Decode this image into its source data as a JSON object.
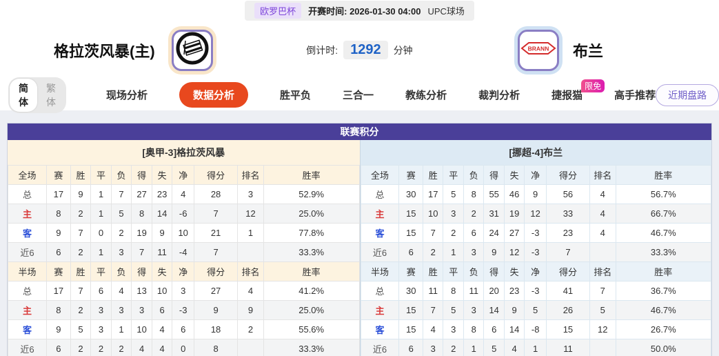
{
  "top_bar": {
    "league_badge": "欧罗巴杯",
    "kickoff_label": "开赛时间:",
    "kickoff_time": "2026-01-30 04:00",
    "venue": "UPC球场"
  },
  "header": {
    "home_team": "格拉茨风暴(主)",
    "away_team": "布兰",
    "away_logo_text": "BRANN",
    "countdown_label": "倒计时:",
    "countdown_value": "1292",
    "countdown_unit": "分钟"
  },
  "tabs": {
    "lang_simplified": "简体",
    "lang_traditional": "繁体",
    "items": [
      "现场分析",
      "数据分析",
      "胜平负",
      "三合一",
      "教练分析",
      "裁判分析",
      "捷报猫",
      "高手推荐"
    ],
    "active_tab": "数据分析",
    "jiebao_badge": "限免",
    "recent_button": "近期盘路"
  },
  "table": {
    "title": "联赛积分",
    "columns_full": [
      "全场",
      "赛",
      "胜",
      "平",
      "负",
      "得",
      "失",
      "净",
      "得分",
      "排名",
      "胜率"
    ],
    "columns_half": [
      "半场",
      "赛",
      "胜",
      "平",
      "负",
      "得",
      "失",
      "净",
      "得分",
      "排名",
      "胜率"
    ],
    "label_colors": {
      "主": "red",
      "客": "blue"
    },
    "home": {
      "header": "[奥甲-3]格拉茨风暴",
      "full": [
        [
          "总",
          "17",
          "9",
          "1",
          "7",
          "27",
          "23",
          "4",
          "28",
          "3",
          "52.9%"
        ],
        [
          "主",
          "8",
          "2",
          "1",
          "5",
          "8",
          "14",
          "-6",
          "7",
          "12",
          "25.0%"
        ],
        [
          "客",
          "9",
          "7",
          "0",
          "2",
          "19",
          "9",
          "10",
          "21",
          "1",
          "77.8%"
        ],
        [
          "近6",
          "6",
          "2",
          "1",
          "3",
          "7",
          "11",
          "-4",
          "7",
          "",
          "33.3%"
        ]
      ],
      "half": [
        [
          "总",
          "17",
          "7",
          "6",
          "4",
          "13",
          "10",
          "3",
          "27",
          "4",
          "41.2%"
        ],
        [
          "主",
          "8",
          "2",
          "3",
          "3",
          "3",
          "6",
          "-3",
          "9",
          "9",
          "25.0%"
        ],
        [
          "客",
          "9",
          "5",
          "3",
          "1",
          "10",
          "4",
          "6",
          "18",
          "2",
          "55.6%"
        ],
        [
          "近6",
          "6",
          "2",
          "2",
          "2",
          "4",
          "4",
          "0",
          "8",
          "",
          "33.3%"
        ]
      ]
    },
    "away": {
      "header": "[挪超-4]布兰",
      "full": [
        [
          "总",
          "30",
          "17",
          "5",
          "8",
          "55",
          "46",
          "9",
          "56",
          "4",
          "56.7%"
        ],
        [
          "主",
          "15",
          "10",
          "3",
          "2",
          "31",
          "19",
          "12",
          "33",
          "4",
          "66.7%"
        ],
        [
          "客",
          "15",
          "7",
          "2",
          "6",
          "24",
          "27",
          "-3",
          "23",
          "4",
          "46.7%"
        ],
        [
          "近6",
          "6",
          "2",
          "1",
          "3",
          "9",
          "12",
          "-3",
          "7",
          "",
          "33.3%"
        ]
      ],
      "half": [
        [
          "总",
          "30",
          "11",
          "8",
          "11",
          "20",
          "23",
          "-3",
          "41",
          "7",
          "36.7%"
        ],
        [
          "主",
          "15",
          "7",
          "5",
          "3",
          "14",
          "9",
          "5",
          "26",
          "5",
          "46.7%"
        ],
        [
          "客",
          "15",
          "4",
          "3",
          "8",
          "6",
          "14",
          "-8",
          "15",
          "12",
          "26.7%"
        ],
        [
          "近6",
          "6",
          "3",
          "2",
          "1",
          "5",
          "4",
          "1",
          "11",
          "",
          "50.0%"
        ]
      ]
    }
  },
  "colors": {
    "table_header_purple": "#4a3f99",
    "active_tab_orange": "#e8481e",
    "home_header_cream": "#fdf3e0",
    "away_header_blue": "#ddeaf4",
    "countdown_blue": "#1e62c6",
    "badge_pink": "#dc1cb0",
    "league_badge_purple": "#7d45d9",
    "home_label_red": "#d93a3a",
    "away_label_blue": "#2c50d8"
  }
}
